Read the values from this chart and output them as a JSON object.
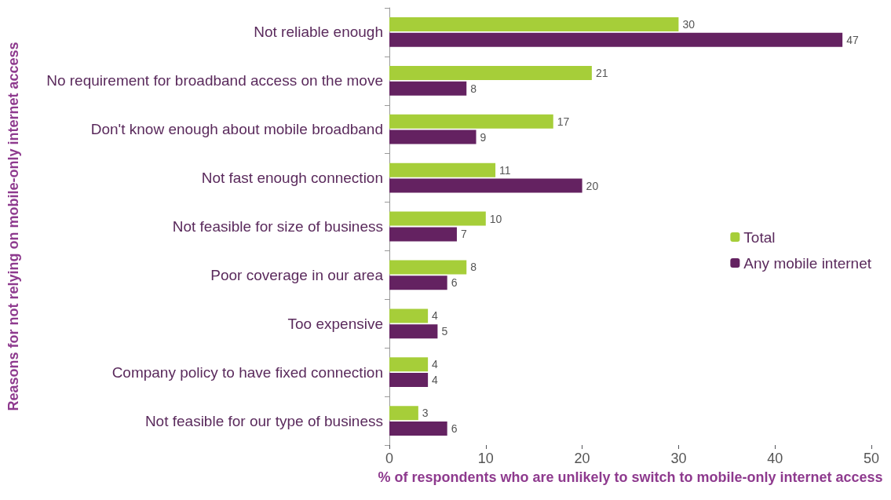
{
  "chart_data": {
    "type": "bar",
    "orientation": "horizontal",
    "xlabel": "% of respondents who are unlikely to switch to mobile-only internet access",
    "ylabel": "Reasons for not relying on mobile-only internet access",
    "categories": [
      "Not reliable enough",
      "No requirement for broadband access on the move",
      "Don't know enough about mobile broadband",
      "Not fast enough connection",
      "Not feasible for size of business",
      "Poor coverage in our area",
      "Too expensive",
      "Company policy to have fixed connection",
      "Not feasible for our type of business"
    ],
    "series": [
      {
        "name": "Total",
        "color": "#a6ce39",
        "values": [
          30,
          21,
          17,
          11,
          10,
          8,
          4,
          4,
          3
        ]
      },
      {
        "name": "Any mobile internet",
        "color": "#642261",
        "values": [
          47,
          8,
          9,
          20,
          7,
          6,
          5,
          4,
          6
        ]
      }
    ],
    "xlim": [
      0,
      50
    ],
    "xticks": [
      0,
      10,
      20,
      30,
      40,
      50
    ],
    "grid": false,
    "legend": "right",
    "data_labels": true
  }
}
